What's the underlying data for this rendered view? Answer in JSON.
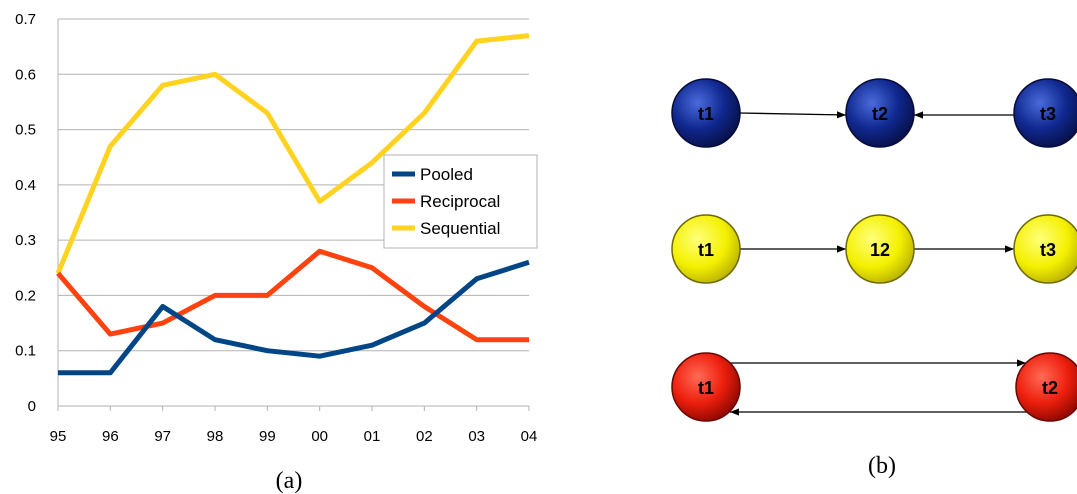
{
  "chart_data": {
    "type": "line",
    "categories": [
      "95",
      "96",
      "97",
      "98",
      "99",
      "00",
      "01",
      "02",
      "03",
      "04"
    ],
    "ylim": [
      0,
      0.7
    ],
    "yticks": [
      "0",
      "0.1",
      "0.2",
      "0.3",
      "0.4",
      "0.5",
      "0.6",
      "0.7"
    ],
    "grid": "horizontal",
    "legend_position": "right",
    "series": [
      {
        "name": "Pooled",
        "color": "#004586",
        "values": [
          0.06,
          0.06,
          0.18,
          0.12,
          0.1,
          0.09,
          0.11,
          0.15,
          0.23,
          0.26
        ]
      },
      {
        "name": "Reciprocal",
        "color": "#ff420e",
        "values": [
          0.24,
          0.13,
          0.15,
          0.2,
          0.2,
          0.28,
          0.25,
          0.18,
          0.12,
          0.12
        ]
      },
      {
        "name": "Sequential",
        "color": "#ffd320",
        "values": [
          0.24,
          0.47,
          0.58,
          0.6,
          0.53,
          0.37,
          0.44,
          0.53,
          0.66,
          0.67
        ]
      }
    ],
    "caption": "(a)"
  },
  "diagram": {
    "caption": "(b)",
    "rows": [
      {
        "color": "blue",
        "nodes": [
          "t1",
          "t2",
          "t3"
        ]
      },
      {
        "color": "yellow",
        "nodes": [
          "t1",
          "12",
          "t3"
        ]
      },
      {
        "color": "red",
        "nodes": [
          "t1",
          "t2"
        ]
      }
    ]
  }
}
